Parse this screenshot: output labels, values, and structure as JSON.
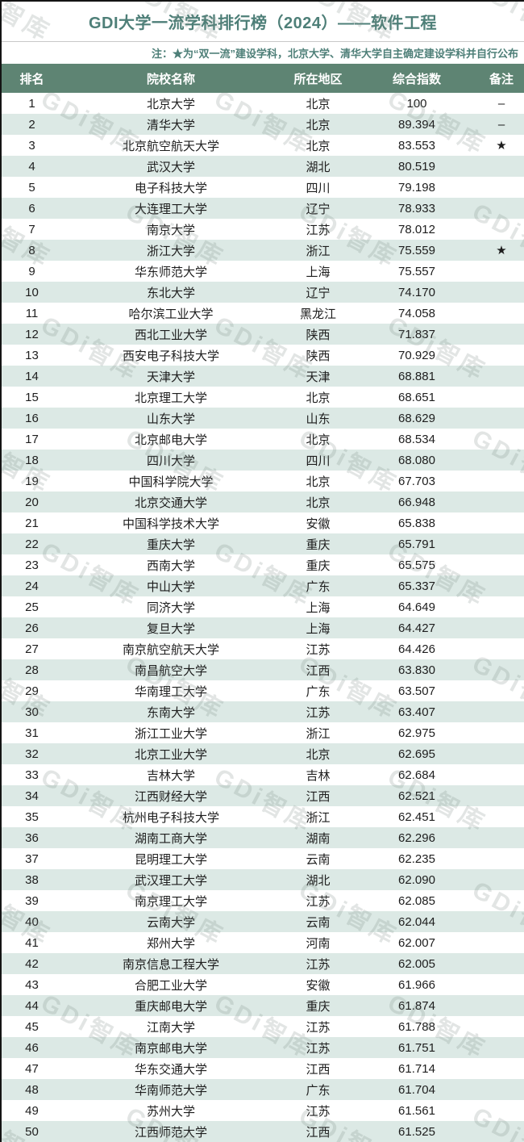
{
  "header": {
    "title": "GDI大学一流学科排行榜（2024）——软件工程",
    "note": "注：★为“双一流”建设学科，北京大学、清华大学自主确定建设学科并自行公布"
  },
  "watermark": {
    "text": "GDi智库"
  },
  "colors": {
    "accent_teal": "#4e7f78",
    "table_header_bg": "#5e8473",
    "row_alt_bg": "#dce9e5",
    "header_text": "#ffffff",
    "body_text": "#1d1d1d"
  },
  "table": {
    "columns": [
      "排名",
      "院校名称",
      "所在地区",
      "综合指数",
      "备注"
    ],
    "rows": [
      {
        "rank": "1",
        "name": "北京大学",
        "region": "北京",
        "index": "100",
        "note": "–"
      },
      {
        "rank": "2",
        "name": "清华大学",
        "region": "北京",
        "index": "89.394",
        "note": "–"
      },
      {
        "rank": "3",
        "name": "北京航空航天大学",
        "region": "北京",
        "index": "83.553",
        "note": "★"
      },
      {
        "rank": "4",
        "name": "武汉大学",
        "region": "湖北",
        "index": "80.519",
        "note": ""
      },
      {
        "rank": "5",
        "name": "电子科技大学",
        "region": "四川",
        "index": "79.198",
        "note": ""
      },
      {
        "rank": "6",
        "name": "大连理工大学",
        "region": "辽宁",
        "index": "78.933",
        "note": ""
      },
      {
        "rank": "7",
        "name": "南京大学",
        "region": "江苏",
        "index": "78.012",
        "note": ""
      },
      {
        "rank": "8",
        "name": "浙江大学",
        "region": "浙江",
        "index": "75.559",
        "note": "★"
      },
      {
        "rank": "9",
        "name": "华东师范大学",
        "region": "上海",
        "index": "75.557",
        "note": ""
      },
      {
        "rank": "10",
        "name": "东北大学",
        "region": "辽宁",
        "index": "74.170",
        "note": ""
      },
      {
        "rank": "11",
        "name": "哈尔滨工业大学",
        "region": "黑龙江",
        "index": "74.058",
        "note": ""
      },
      {
        "rank": "12",
        "name": "西北工业大学",
        "region": "陕西",
        "index": "71.837",
        "note": ""
      },
      {
        "rank": "13",
        "name": "西安电子科技大学",
        "region": "陕西",
        "index": "70.929",
        "note": ""
      },
      {
        "rank": "14",
        "name": "天津大学",
        "region": "天津",
        "index": "68.881",
        "note": ""
      },
      {
        "rank": "15",
        "name": "北京理工大学",
        "region": "北京",
        "index": "68.651",
        "note": ""
      },
      {
        "rank": "16",
        "name": "山东大学",
        "region": "山东",
        "index": "68.629",
        "note": ""
      },
      {
        "rank": "17",
        "name": "北京邮电大学",
        "region": "北京",
        "index": "68.534",
        "note": ""
      },
      {
        "rank": "18",
        "name": "四川大学",
        "region": "四川",
        "index": "68.080",
        "note": ""
      },
      {
        "rank": "19",
        "name": "中国科学院大学",
        "region": "北京",
        "index": "67.703",
        "note": ""
      },
      {
        "rank": "20",
        "name": "北京交通大学",
        "region": "北京",
        "index": "66.948",
        "note": ""
      },
      {
        "rank": "21",
        "name": "中国科学技术大学",
        "region": "安徽",
        "index": "65.838",
        "note": ""
      },
      {
        "rank": "22",
        "name": "重庆大学",
        "region": "重庆",
        "index": "65.791",
        "note": ""
      },
      {
        "rank": "23",
        "name": "西南大学",
        "region": "重庆",
        "index": "65.575",
        "note": ""
      },
      {
        "rank": "24",
        "name": "中山大学",
        "region": "广东",
        "index": "65.337",
        "note": ""
      },
      {
        "rank": "25",
        "name": "同济大学",
        "region": "上海",
        "index": "64.649",
        "note": ""
      },
      {
        "rank": "26",
        "name": "复旦大学",
        "region": "上海",
        "index": "64.427",
        "note": ""
      },
      {
        "rank": "27",
        "name": "南京航空航天大学",
        "region": "江苏",
        "index": "64.426",
        "note": ""
      },
      {
        "rank": "28",
        "name": "南昌航空大学",
        "region": "江西",
        "index": "63.830",
        "note": ""
      },
      {
        "rank": "29",
        "name": "华南理工大学",
        "region": "广东",
        "index": "63.507",
        "note": ""
      },
      {
        "rank": "30",
        "name": "东南大学",
        "region": "江苏",
        "index": "63.407",
        "note": ""
      },
      {
        "rank": "31",
        "name": "浙江工业大学",
        "region": "浙江",
        "index": "62.975",
        "note": ""
      },
      {
        "rank": "32",
        "name": "北京工业大学",
        "region": "北京",
        "index": "62.695",
        "note": ""
      },
      {
        "rank": "33",
        "name": "吉林大学",
        "region": "吉林",
        "index": "62.684",
        "note": ""
      },
      {
        "rank": "34",
        "name": "江西财经大学",
        "region": "江西",
        "index": "62.521",
        "note": ""
      },
      {
        "rank": "35",
        "name": "杭州电子科技大学",
        "region": "浙江",
        "index": "62.451",
        "note": ""
      },
      {
        "rank": "36",
        "name": "湖南工商大学",
        "region": "湖南",
        "index": "62.296",
        "note": ""
      },
      {
        "rank": "37",
        "name": "昆明理工大学",
        "region": "云南",
        "index": "62.235",
        "note": ""
      },
      {
        "rank": "38",
        "name": "武汉理工大学",
        "region": "湖北",
        "index": "62.090",
        "note": ""
      },
      {
        "rank": "39",
        "name": "南京理工大学",
        "region": "江苏",
        "index": "62.085",
        "note": ""
      },
      {
        "rank": "40",
        "name": "云南大学",
        "region": "云南",
        "index": "62.044",
        "note": ""
      },
      {
        "rank": "41",
        "name": "郑州大学",
        "region": "河南",
        "index": "62.007",
        "note": ""
      },
      {
        "rank": "42",
        "name": "南京信息工程大学",
        "region": "江苏",
        "index": "62.005",
        "note": ""
      },
      {
        "rank": "43",
        "name": "合肥工业大学",
        "region": "安徽",
        "index": "61.966",
        "note": ""
      },
      {
        "rank": "44",
        "name": "重庆邮电大学",
        "region": "重庆",
        "index": "61.874",
        "note": ""
      },
      {
        "rank": "45",
        "name": "江南大学",
        "region": "江苏",
        "index": "61.788",
        "note": ""
      },
      {
        "rank": "46",
        "name": "南京邮电大学",
        "region": "江苏",
        "index": "61.751",
        "note": ""
      },
      {
        "rank": "47",
        "name": "华东交通大学",
        "region": "江西",
        "index": "61.714",
        "note": ""
      },
      {
        "rank": "48",
        "name": "华南师范大学",
        "region": "广东",
        "index": "61.704",
        "note": ""
      },
      {
        "rank": "49",
        "name": "苏州大学",
        "region": "江苏",
        "index": "61.561",
        "note": ""
      },
      {
        "rank": "50",
        "name": "江西师范大学",
        "region": "江西",
        "index": "61.525",
        "note": ""
      }
    ]
  }
}
